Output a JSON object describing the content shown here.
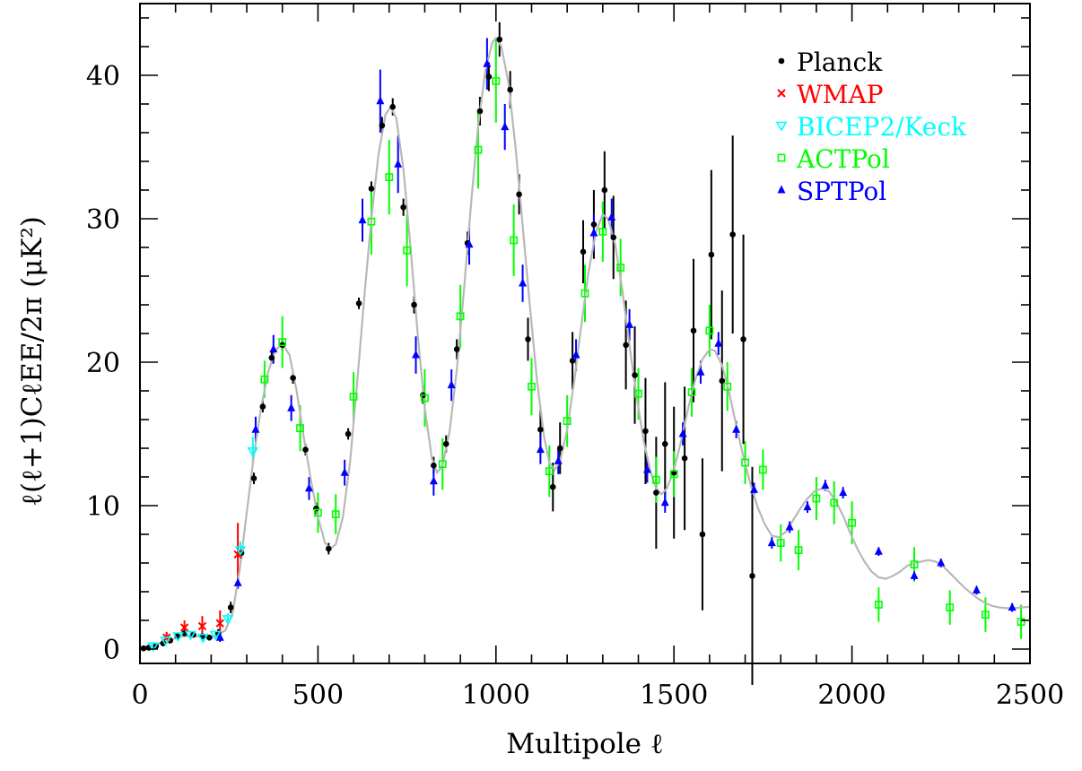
{
  "chart_data": {
    "type": "scatter",
    "title": "",
    "xlabel": "Multipole ℓ",
    "ylabel": "ℓ(ℓ+1)CℓEE/2π (μK²)",
    "xlim": [
      0,
      2500
    ],
    "ylim": [
      -1,
      45
    ],
    "x_ticks": [
      0,
      500,
      1000,
      1500,
      2000,
      2500
    ],
    "x_tick_labels": [
      "0",
      "500",
      "1000",
      "1500",
      "2000",
      "2500"
    ],
    "y_ticks": [
      0,
      10,
      20,
      30,
      40
    ],
    "y_tick_labels": [
      "0",
      "10",
      "20",
      "30",
      "40"
    ],
    "grid": false,
    "legend_position": "top-right",
    "theory_curve": {
      "color": "#b8b8b8",
      "points": [
        [
          2,
          0.05
        ],
        [
          20,
          0.2
        ],
        [
          40,
          0.3
        ],
        [
          80,
          0.6
        ],
        [
          120,
          0.9
        ],
        [
          160,
          0.9
        ],
        [
          200,
          0.8
        ],
        [
          240,
          1.3
        ],
        [
          260,
          2.5
        ],
        [
          280,
          5.5
        ],
        [
          300,
          9.5
        ],
        [
          320,
          13.5
        ],
        [
          340,
          16.8
        ],
        [
          360,
          19.3
        ],
        [
          380,
          20.8
        ],
        [
          400,
          21.3
        ],
        [
          420,
          20.5
        ],
        [
          440,
          18.0
        ],
        [
          460,
          14.8
        ],
        [
          480,
          11.8
        ],
        [
          500,
          9.2
        ],
        [
          520,
          7.4
        ],
        [
          535,
          7.0
        ],
        [
          550,
          7.3
        ],
        [
          570,
          9.2
        ],
        [
          590,
          13.0
        ],
        [
          610,
          18.5
        ],
        [
          630,
          24.5
        ],
        [
          650,
          30.0
        ],
        [
          670,
          34.5
        ],
        [
          690,
          37.3
        ],
        [
          705,
          37.8
        ],
        [
          720,
          37.0
        ],
        [
          740,
          33.5
        ],
        [
          760,
          28.0
        ],
        [
          780,
          22.0
        ],
        [
          800,
          16.8
        ],
        [
          820,
          13.3
        ],
        [
          835,
          12.3
        ],
        [
          850,
          12.8
        ],
        [
          870,
          15.2
        ],
        [
          890,
          19.5
        ],
        [
          910,
          25.0
        ],
        [
          930,
          31.0
        ],
        [
          950,
          36.5
        ],
        [
          970,
          40.3
        ],
        [
          990,
          42.3
        ],
        [
          1000,
          42.6
        ],
        [
          1015,
          42.0
        ],
        [
          1035,
          39.5
        ],
        [
          1055,
          35.0
        ],
        [
          1075,
          29.5
        ],
        [
          1095,
          24.0
        ],
        [
          1115,
          18.8
        ],
        [
          1135,
          14.8
        ],
        [
          1150,
          13.0
        ],
        [
          1165,
          12.5
        ],
        [
          1180,
          13.1
        ],
        [
          1200,
          15.3
        ],
        [
          1220,
          18.7
        ],
        [
          1240,
          22.6
        ],
        [
          1260,
          26.3
        ],
        [
          1280,
          29.0
        ],
        [
          1300,
          30.3
        ],
        [
          1315,
          30.0
        ],
        [
          1335,
          28.2
        ],
        [
          1355,
          25.0
        ],
        [
          1375,
          21.2
        ],
        [
          1395,
          17.6
        ],
        [
          1415,
          14.5
        ],
        [
          1435,
          12.3
        ],
        [
          1450,
          11.2
        ],
        [
          1465,
          10.8
        ],
        [
          1480,
          11.2
        ],
        [
          1500,
          12.5
        ],
        [
          1520,
          14.5
        ],
        [
          1540,
          16.8
        ],
        [
          1560,
          18.8
        ],
        [
          1580,
          20.2
        ],
        [
          1600,
          20.9
        ],
        [
          1615,
          20.8
        ],
        [
          1635,
          19.8
        ],
        [
          1655,
          17.9
        ],
        [
          1675,
          15.6
        ],
        [
          1695,
          13.4
        ],
        [
          1715,
          11.5
        ],
        [
          1735,
          9.9
        ],
        [
          1755,
          8.7
        ],
        [
          1775,
          7.9
        ],
        [
          1795,
          7.8
        ],
        [
          1815,
          8.2
        ],
        [
          1835,
          9.0
        ],
        [
          1855,
          9.8
        ],
        [
          1875,
          10.5
        ],
        [
          1895,
          11.0
        ],
        [
          1915,
          11.2
        ],
        [
          1935,
          11.0
        ],
        [
          1955,
          10.3
        ],
        [
          1975,
          9.3
        ],
        [
          1995,
          8.1
        ],
        [
          2015,
          7.0
        ],
        [
          2035,
          6.1
        ],
        [
          2055,
          5.4
        ],
        [
          2075,
          5.0
        ],
        [
          2095,
          4.9
        ],
        [
          2115,
          5.1
        ],
        [
          2135,
          5.4
        ],
        [
          2155,
          5.8
        ],
        [
          2175,
          6.0
        ],
        [
          2195,
          6.1
        ],
        [
          2215,
          6.2
        ],
        [
          2235,
          6.1
        ],
        [
          2255,
          5.8
        ],
        [
          2275,
          5.3
        ],
        [
          2295,
          4.8
        ],
        [
          2315,
          4.3
        ],
        [
          2335,
          3.9
        ],
        [
          2355,
          3.5
        ],
        [
          2375,
          3.2
        ],
        [
          2395,
          3.0
        ],
        [
          2415,
          2.9
        ],
        [
          2435,
          2.85
        ],
        [
          2455,
          2.85
        ],
        [
          2475,
          2.9
        ],
        [
          2500,
          2.95
        ]
      ]
    },
    "series": [
      {
        "name": "Planck",
        "color": "#000000",
        "marker": "dot",
        "points": [
          [
            10,
            0.05,
            0.2
          ],
          [
            25,
            0.1,
            0.2
          ],
          [
            45,
            0.2,
            0.2
          ],
          [
            65,
            0.4,
            0.2
          ],
          [
            85,
            0.6,
            0.2
          ],
          [
            105,
            0.9,
            0.2
          ],
          [
            125,
            1.1,
            0.2
          ],
          [
            150,
            1.0,
            0.2
          ],
          [
            175,
            0.9,
            0.2
          ],
          [
            195,
            0.8,
            0.2
          ],
          [
            220,
            1.1,
            0.3
          ],
          [
            255,
            2.9,
            0.4
          ],
          [
            285,
            6.7,
            0.4
          ],
          [
            320,
            11.9,
            0.4
          ],
          [
            345,
            16.9,
            0.4
          ],
          [
            370,
            20.3,
            0.4
          ],
          [
            400,
            21.2,
            0.4
          ],
          [
            430,
            18.9,
            0.4
          ],
          [
            465,
            13.9,
            0.4
          ],
          [
            495,
            9.8,
            0.4
          ],
          [
            530,
            7.0,
            0.4
          ],
          [
            585,
            15.0,
            0.4
          ],
          [
            615,
            24.1,
            0.4
          ],
          [
            650,
            32.1,
            0.5
          ],
          [
            680,
            36.5,
            0.6
          ],
          [
            710,
            37.8,
            0.6
          ],
          [
            740,
            30.8,
            0.6
          ],
          [
            770,
            24.0,
            0.6
          ],
          [
            795,
            17.7,
            0.6
          ],
          [
            825,
            12.8,
            0.6
          ],
          [
            860,
            14.3,
            0.6
          ],
          [
            890,
            20.9,
            0.7
          ],
          [
            920,
            28.3,
            0.8
          ],
          [
            955,
            37.5,
            1.0
          ],
          [
            980,
            39.9,
            1.0
          ],
          [
            1010,
            42.5,
            1.2
          ],
          [
            1040,
            39.0,
            1.3
          ],
          [
            1065,
            31.7,
            1.4
          ],
          [
            1090,
            21.6,
            1.5
          ],
          [
            1125,
            15.3,
            1.6
          ],
          [
            1160,
            11.3,
            1.7
          ],
          [
            1180,
            14.0,
            1.8
          ],
          [
            1215,
            20.1,
            2.0
          ],
          [
            1245,
            27.7,
            2.2
          ],
          [
            1275,
            29.6,
            2.4
          ],
          [
            1305,
            32.0,
            2.7
          ],
          [
            1330,
            28.7,
            2.9
          ],
          [
            1365,
            21.2,
            3.1
          ],
          [
            1390,
            19.1,
            3.4
          ],
          [
            1420,
            15.2,
            3.7
          ],
          [
            1450,
            10.9,
            3.9
          ],
          [
            1475,
            14.3,
            4.3
          ],
          [
            1500,
            12.3,
            4.6
          ],
          [
            1530,
            13.3,
            5.0
          ],
          [
            1555,
            22.2,
            5.0
          ],
          [
            1580,
            8.0,
            5.3
          ],
          [
            1605,
            27.5,
            5.9
          ],
          [
            1635,
            18.7,
            6.3
          ],
          [
            1665,
            28.9,
            6.9
          ],
          [
            1695,
            21.6,
            7.3
          ],
          [
            1720,
            5.1,
            7.6
          ]
        ]
      },
      {
        "name": "WMAP",
        "color": "#ff0000",
        "marker": "cross",
        "points": [
          [
            75,
            0.8,
            0.4
          ],
          [
            125,
            1.5,
            0.5
          ],
          [
            175,
            1.6,
            0.7
          ],
          [
            225,
            1.8,
            0.9
          ],
          [
            275,
            6.6,
            2.2
          ]
        ]
      },
      {
        "name": "BICEP2/Keck",
        "color": "#00ffff",
        "marker": "triangle-down",
        "points": [
          [
            37,
            0.2,
            0.2
          ],
          [
            72,
            0.6,
            0.2
          ],
          [
            107,
            0.9,
            0.2
          ],
          [
            142,
            1.0,
            0.2
          ],
          [
            177,
            0.8,
            0.3
          ],
          [
            212,
            1.0,
            0.3
          ],
          [
            247,
            2.1,
            0.4
          ],
          [
            282,
            6.9,
            0.6
          ],
          [
            317,
            13.8,
            1.0
          ]
        ]
      },
      {
        "name": "ACTPol",
        "color": "#00ff00",
        "marker": "square",
        "points": [
          [
            350,
            18.8,
            1.3
          ],
          [
            400,
            21.4,
            1.8
          ],
          [
            450,
            15.4,
            1.6
          ],
          [
            500,
            9.5,
            1.4
          ],
          [
            550,
            9.4,
            1.4
          ],
          [
            600,
            17.6,
            1.7
          ],
          [
            650,
            29.8,
            2.3
          ],
          [
            700,
            32.9,
            2.6
          ],
          [
            750,
            27.8,
            2.5
          ],
          [
            800,
            17.5,
            2.0
          ],
          [
            850,
            12.9,
            1.8
          ],
          [
            900,
            23.2,
            2.2
          ],
          [
            950,
            34.8,
            2.7
          ],
          [
            1000,
            39.6,
            2.9
          ],
          [
            1050,
            28.5,
            2.5
          ],
          [
            1100,
            18.3,
            2.0
          ],
          [
            1150,
            12.4,
            1.8
          ],
          [
            1200,
            15.9,
            1.8
          ],
          [
            1250,
            24.8,
            2.0
          ],
          [
            1300,
            29.1,
            2.1
          ],
          [
            1350,
            26.6,
            2.0
          ],
          [
            1400,
            17.8,
            1.8
          ],
          [
            1450,
            11.8,
            1.6
          ],
          [
            1500,
            12.2,
            1.6
          ],
          [
            1550,
            17.9,
            1.7
          ],
          [
            1600,
            22.2,
            1.8
          ],
          [
            1650,
            18.3,
            1.7
          ],
          [
            1700,
            13.0,
            1.5
          ],
          [
            1750,
            12.5,
            1.4
          ],
          [
            1800,
            7.4,
            1.3
          ],
          [
            1850,
            6.9,
            1.4
          ],
          [
            1900,
            10.5,
            1.5
          ],
          [
            1950,
            10.2,
            1.5
          ],
          [
            2000,
            8.8,
            1.5
          ],
          [
            2075,
            3.1,
            1.2
          ],
          [
            2175,
            5.9,
            1.2
          ],
          [
            2275,
            2.9,
            1.2
          ],
          [
            2375,
            2.4,
            1.2
          ],
          [
            2475,
            1.9,
            1.2
          ]
        ]
      },
      {
        "name": "SPTPol",
        "color": "#0000ff",
        "marker": "triangle-up",
        "points": [
          [
            225,
            0.8,
            0.3
          ],
          [
            275,
            4.6,
            0.4
          ],
          [
            325,
            15.3,
            0.9
          ],
          [
            375,
            20.9,
            1.0
          ],
          [
            425,
            16.8,
            0.9
          ],
          [
            475,
            11.2,
            0.8
          ],
          [
            575,
            12.3,
            0.9
          ],
          [
            625,
            29.9,
            1.5
          ],
          [
            675,
            38.2,
            2.2
          ],
          [
            725,
            33.8,
            2.0
          ],
          [
            775,
            20.5,
            1.3
          ],
          [
            825,
            11.7,
            1.0
          ],
          [
            875,
            18.4,
            1.1
          ],
          [
            925,
            28.2,
            1.4
          ],
          [
            975,
            40.8,
            1.8
          ],
          [
            1025,
            36.4,
            1.6
          ],
          [
            1075,
            25.5,
            1.3
          ],
          [
            1125,
            13.9,
            1.0
          ],
          [
            1175,
            13.1,
            0.9
          ],
          [
            1225,
            20.5,
            1.1
          ],
          [
            1275,
            29.0,
            1.3
          ],
          [
            1325,
            30.1,
            1.3
          ],
          [
            1375,
            22.6,
            1.1
          ],
          [
            1425,
            12.5,
            0.9
          ],
          [
            1475,
            10.2,
            0.7
          ],
          [
            1525,
            15.0,
            0.8
          ],
          [
            1575,
            19.3,
            0.8
          ],
          [
            1625,
            21.3,
            0.8
          ],
          [
            1675,
            15.3,
            0.6
          ],
          [
            1725,
            11.1,
            0.5
          ],
          [
            1775,
            7.4,
            0.4
          ],
          [
            1825,
            8.5,
            0.4
          ],
          [
            1875,
            9.9,
            0.4
          ],
          [
            1925,
            11.4,
            0.4
          ],
          [
            1975,
            10.9,
            0.4
          ],
          [
            2075,
            6.8,
            0.3
          ],
          [
            2175,
            5.1,
            0.3
          ],
          [
            2250,
            6.0,
            0.3
          ],
          [
            2350,
            4.1,
            0.3
          ],
          [
            2450,
            2.9,
            0.3
          ]
        ]
      }
    ]
  }
}
